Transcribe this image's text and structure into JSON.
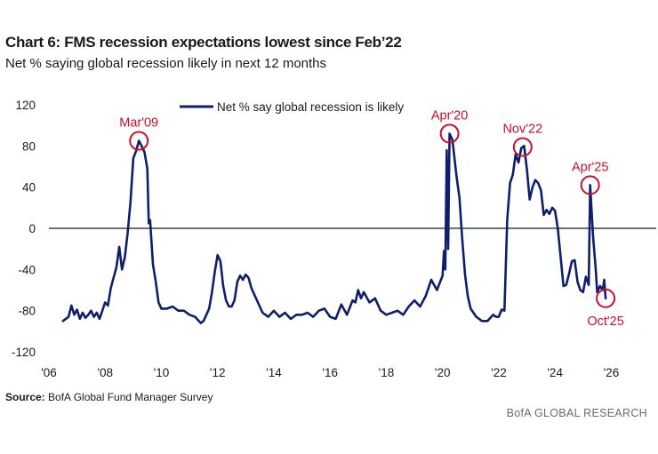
{
  "header": {
    "title": "Chart 6: FMS recession expectations lowest since Feb’22",
    "subtitle": "Net % saying global recession likely in next 12 months"
  },
  "footer": {
    "source_label": "Source:",
    "source_text": " BofA Global Fund Manager Survey",
    "brand": "BofA GLOBAL RESEARCH"
  },
  "colors": {
    "series": "#0e1f6b",
    "annotation": "#c8102e",
    "axis": "#1a1a1a"
  },
  "chart_data": {
    "type": "line",
    "title": "Chart 6: FMS recession expectations lowest since Feb’22",
    "subtitle": "Net % saying global recession likely in next 12 months",
    "xlabel": "",
    "ylabel": "",
    "xlim": [
      2006,
      2027.6
    ],
    "ylim": [
      -120,
      120
    ],
    "x_ticks": [
      2006,
      2008,
      2010,
      2012,
      2014,
      2016,
      2018,
      2020,
      2022,
      2024,
      2026
    ],
    "x_tick_labels": [
      "'06",
      "'08",
      "'10",
      "'12",
      "'14",
      "'16",
      "'18",
      "'20",
      "'22",
      "'24",
      "'26"
    ],
    "y_ticks": [
      120,
      80,
      40,
      0,
      -40,
      -80,
      -120
    ],
    "y_tick_labels": [
      "120",
      "80",
      "40",
      "0",
      "-40",
      "-80",
      "-120"
    ],
    "zero_line": true,
    "grid": false,
    "legend": {
      "position": "top-center",
      "entries": [
        "Net % say global recession is likely"
      ]
    },
    "series": [
      {
        "name": "Net % say global recession is likely",
        "points": [
          [
            2006.5,
            -90
          ],
          [
            2006.7,
            -86
          ],
          [
            2006.8,
            -75
          ],
          [
            2006.9,
            -84
          ],
          [
            2007.0,
            -79
          ],
          [
            2007.1,
            -88
          ],
          [
            2007.2,
            -82
          ],
          [
            2007.3,
            -87
          ],
          [
            2007.4,
            -84
          ],
          [
            2007.5,
            -80
          ],
          [
            2007.6,
            -86
          ],
          [
            2007.7,
            -82
          ],
          [
            2007.8,
            -88
          ],
          [
            2007.9,
            -80
          ],
          [
            2008.0,
            -72
          ],
          [
            2008.1,
            -75
          ],
          [
            2008.2,
            -58
          ],
          [
            2008.3,
            -48
          ],
          [
            2008.4,
            -38
          ],
          [
            2008.5,
            -18
          ],
          [
            2008.6,
            -40
          ],
          [
            2008.7,
            -28
          ],
          [
            2008.8,
            -5
          ],
          [
            2008.9,
            25
          ],
          [
            2009.0,
            68
          ],
          [
            2009.1,
            75
          ],
          [
            2009.2,
            85
          ],
          [
            2009.3,
            80
          ],
          [
            2009.4,
            74
          ],
          [
            2009.5,
            58
          ],
          [
            2009.55,
            5
          ],
          [
            2009.6,
            8
          ],
          [
            2009.7,
            -35
          ],
          [
            2009.8,
            -52
          ],
          [
            2009.9,
            -72
          ],
          [
            2010.0,
            -78
          ],
          [
            2010.2,
            -78
          ],
          [
            2010.4,
            -76
          ],
          [
            2010.6,
            -80
          ],
          [
            2010.8,
            -80
          ],
          [
            2011.0,
            -84
          ],
          [
            2011.2,
            -86
          ],
          [
            2011.4,
            -92
          ],
          [
            2011.5,
            -90
          ],
          [
            2011.6,
            -84
          ],
          [
            2011.7,
            -78
          ],
          [
            2011.8,
            -62
          ],
          [
            2011.9,
            -42
          ],
          [
            2012.0,
            -26
          ],
          [
            2012.1,
            -32
          ],
          [
            2012.2,
            -56
          ],
          [
            2012.3,
            -70
          ],
          [
            2012.4,
            -76
          ],
          [
            2012.5,
            -76
          ],
          [
            2012.6,
            -70
          ],
          [
            2012.7,
            -52
          ],
          [
            2012.8,
            -46
          ],
          [
            2012.9,
            -50
          ],
          [
            2013.0,
            -45
          ],
          [
            2013.1,
            -48
          ],
          [
            2013.2,
            -58
          ],
          [
            2013.4,
            -70
          ],
          [
            2013.6,
            -82
          ],
          [
            2013.8,
            -86
          ],
          [
            2014.0,
            -80
          ],
          [
            2014.2,
            -86
          ],
          [
            2014.4,
            -82
          ],
          [
            2014.6,
            -88
          ],
          [
            2014.8,
            -84
          ],
          [
            2015.0,
            -84
          ],
          [
            2015.2,
            -82
          ],
          [
            2015.4,
            -86
          ],
          [
            2015.6,
            -80
          ],
          [
            2015.8,
            -78
          ],
          [
            2016.0,
            -86
          ],
          [
            2016.2,
            -88
          ],
          [
            2016.4,
            -74
          ],
          [
            2016.6,
            -84
          ],
          [
            2016.8,
            -70
          ],
          [
            2016.9,
            -72
          ],
          [
            2017.0,
            -60
          ],
          [
            2017.1,
            -68
          ],
          [
            2017.2,
            -62
          ],
          [
            2017.4,
            -72
          ],
          [
            2017.6,
            -68
          ],
          [
            2017.8,
            -80
          ],
          [
            2018.0,
            -84
          ],
          [
            2018.2,
            -82
          ],
          [
            2018.4,
            -80
          ],
          [
            2018.6,
            -84
          ],
          [
            2018.8,
            -76
          ],
          [
            2019.0,
            -70
          ],
          [
            2019.2,
            -76
          ],
          [
            2019.4,
            -66
          ],
          [
            2019.6,
            -50
          ],
          [
            2019.8,
            -60
          ],
          [
            2020.0,
            -46
          ],
          [
            2020.05,
            -22
          ],
          [
            2020.1,
            -40
          ],
          [
            2020.15,
            76
          ],
          [
            2020.2,
            -20
          ],
          [
            2020.25,
            92
          ],
          [
            2020.35,
            86
          ],
          [
            2020.5,
            50
          ],
          [
            2020.6,
            30
          ],
          [
            2020.7,
            -10
          ],
          [
            2020.8,
            -45
          ],
          [
            2020.9,
            -66
          ],
          [
            2021.0,
            -78
          ],
          [
            2021.2,
            -86
          ],
          [
            2021.4,
            -90
          ],
          [
            2021.6,
            -90
          ],
          [
            2021.8,
            -84
          ],
          [
            2021.9,
            -86
          ],
          [
            2022.0,
            -86
          ],
          [
            2022.1,
            -79
          ],
          [
            2022.2,
            -80
          ],
          [
            2022.25,
            -38
          ],
          [
            2022.3,
            8
          ],
          [
            2022.4,
            44
          ],
          [
            2022.5,
            52
          ],
          [
            2022.6,
            72
          ],
          [
            2022.7,
            64
          ],
          [
            2022.8,
            78
          ],
          [
            2022.9,
            80
          ],
          [
            2023.0,
            58
          ],
          [
            2023.1,
            28
          ],
          [
            2023.2,
            40
          ],
          [
            2023.3,
            47
          ],
          [
            2023.4,
            44
          ],
          [
            2023.5,
            37
          ],
          [
            2023.6,
            13
          ],
          [
            2023.7,
            18
          ],
          [
            2023.8,
            14
          ],
          [
            2023.9,
            20
          ],
          [
            2024.0,
            17
          ],
          [
            2024.1,
            0
          ],
          [
            2024.2,
            -28
          ],
          [
            2024.3,
            -56
          ],
          [
            2024.4,
            -55
          ],
          [
            2024.5,
            -44
          ],
          [
            2024.6,
            -32
          ],
          [
            2024.7,
            -31
          ],
          [
            2024.8,
            -52
          ],
          [
            2024.9,
            -60
          ],
          [
            2025.0,
            -62
          ],
          [
            2025.1,
            -47
          ],
          [
            2025.2,
            -55
          ],
          [
            2025.25,
            42
          ],
          [
            2025.35,
            -7
          ],
          [
            2025.45,
            -40
          ],
          [
            2025.5,
            -62
          ],
          [
            2025.6,
            -56
          ],
          [
            2025.7,
            -60
          ],
          [
            2025.75,
            -50
          ],
          [
            2025.8,
            -68
          ]
        ]
      }
    ],
    "annotations": [
      {
        "label": "Mar'09",
        "x": 2009.2,
        "y": 85,
        "label_side": "above"
      },
      {
        "label": "Apr'20",
        "x": 2020.25,
        "y": 92,
        "label_side": "above"
      },
      {
        "label": "Nov'22",
        "x": 2022.85,
        "y": 79,
        "label_side": "above"
      },
      {
        "label": "Apr'25",
        "x": 2025.25,
        "y": 42,
        "label_side": "above"
      },
      {
        "label": "Oct'25",
        "x": 2025.8,
        "y": -68,
        "label_side": "below"
      }
    ]
  }
}
